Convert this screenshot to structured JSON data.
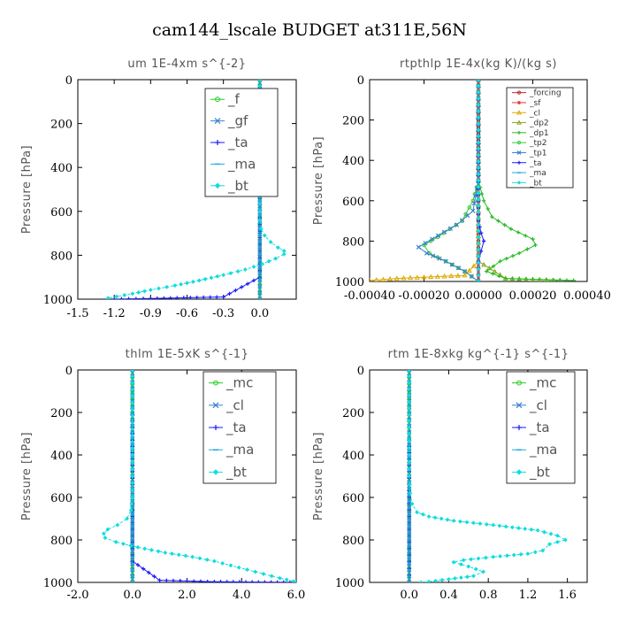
{
  "suptitle": "cam144_lscale  BUDGET at311E,56N",
  "chart_data": [
    {
      "type": "line",
      "title": "um  1E-4xm s^{-2}",
      "ylabel": "Pressure [hPa]",
      "xlim": [
        -1.5,
        0.3
      ],
      "ylim": [
        1000,
        0
      ],
      "xticks": [
        "-1.5",
        "-1.2",
        "-0.9",
        "-0.6",
        "-0.3",
        "0.0"
      ],
      "xtick_values": [
        -1.5,
        -1.2,
        -0.9,
        -0.6,
        -0.3,
        0.0
      ],
      "yticks": [
        "0",
        "200",
        "400",
        "600",
        "800",
        "1000"
      ],
      "ytick_values": [
        0,
        200,
        400,
        600,
        800,
        1000
      ],
      "series": [
        {
          "name": "_f",
          "color": "#22cc22",
          "marker": "circle",
          "values": [
            [
              0,
              0
            ],
            [
              0,
              100
            ],
            [
              0,
              200
            ],
            [
              0,
              300
            ],
            [
              0,
              400
            ],
            [
              0,
              500
            ],
            [
              0,
              600
            ],
            [
              0,
              700
            ],
            [
              0,
              800
            ],
            [
              0,
              900
            ],
            [
              0,
              1000
            ]
          ]
        },
        {
          "name": "_gf",
          "color": "#3a7fd0",
          "marker": "x",
          "values": [
            [
              0,
              0
            ],
            [
              0,
              500
            ],
            [
              0,
              1000
            ]
          ]
        },
        {
          "name": "_ta",
          "color": "#1a1aff",
          "marker": "plus",
          "values": [
            [
              0,
              0
            ],
            [
              0,
              600
            ],
            [
              0,
              900
            ],
            [
              -0.3,
              990
            ],
            [
              -0.9,
              997
            ],
            [
              -1.2,
              1000
            ]
          ]
        },
        {
          "name": "_ma",
          "color": "#22aadd",
          "marker": "dash",
          "values": [
            [
              0,
              0
            ],
            [
              0,
              500
            ],
            [
              0,
              1000
            ]
          ]
        },
        {
          "name": "_bt",
          "color": "#11dddd",
          "marker": "diamond",
          "values": [
            [
              0,
              0
            ],
            [
              0,
              300
            ],
            [
              0,
              500
            ],
            [
              0,
              600
            ],
            [
              0,
              640
            ],
            [
              0.01,
              680
            ],
            [
              0.04,
              710
            ],
            [
              0.09,
              740
            ],
            [
              0.15,
              765
            ],
            [
              0.2,
              780
            ],
            [
              0.2,
              795
            ],
            [
              0.13,
              815
            ],
            [
              0.02,
              840
            ],
            [
              -0.12,
              865
            ],
            [
              -0.3,
              890
            ],
            [
              -0.5,
              915
            ],
            [
              -0.7,
              938
            ],
            [
              -0.9,
              958
            ],
            [
              -1.05,
              975
            ],
            [
              -1.18,
              988
            ],
            [
              -1.25,
              995
            ],
            [
              -1.25,
              1000
            ]
          ]
        }
      ],
      "legend": {
        "position": "top-right",
        "entries": [
          "_f",
          "_gf",
          "_ta",
          "_ma",
          "_bt"
        ]
      }
    },
    {
      "type": "line",
      "title": "rtpthlp  1E-4x(kg K)/(kg s)",
      "ylabel": "Pressure [hPa]",
      "xlim": [
        -0.0004,
        0.0004
      ],
      "ylim": [
        1000,
        0
      ],
      "xticks": [
        "-0.00040",
        "-0.00020",
        "0.00000",
        "0.00020",
        "0.00040"
      ],
      "xtick_values": [
        -0.0004,
        -0.0002,
        0.0,
        0.0002,
        0.0004
      ],
      "yticks": [
        "0",
        "200",
        "400",
        "600",
        "800",
        "1000"
      ],
      "ytick_values": [
        0,
        200,
        400,
        600,
        800,
        1000
      ],
      "series": [
        {
          "name": "_forcing",
          "color": "#cc2222",
          "marker": "circle",
          "values": [
            [
              0,
              0
            ],
            [
              0,
              200
            ],
            [
              0,
              400
            ],
            [
              0,
              600
            ],
            [
              0,
              800
            ],
            [
              0,
              1000
            ]
          ]
        },
        {
          "name": "_sf",
          "color": "#ee3333",
          "marker": "star",
          "values": [
            [
              0,
              0
            ],
            [
              0,
              500
            ],
            [
              0,
              1000
            ]
          ]
        },
        {
          "name": "_cl",
          "color": "#ddaa00",
          "marker": "triangle",
          "values": [
            [
              0,
              0
            ],
            [
              0,
              900
            ],
            [
              -5e-05,
              970
            ],
            [
              -0.0003,
              985
            ],
            [
              -0.0004,
              995
            ]
          ]
        },
        {
          "name": "_dp2",
          "color": "#88aa22",
          "marker": "triangle",
          "values": [
            [
              0,
              0
            ],
            [
              0,
              900
            ],
            [
              0.0001,
              985
            ],
            [
              0.0003,
              995
            ]
          ]
        },
        {
          "name": "_dp1",
          "color": "#22bb22",
          "marker": "plus",
          "values": [
            [
              0,
              0
            ],
            [
              0,
              500
            ],
            [
              2e-05,
              600
            ],
            [
              5e-05,
              680
            ],
            [
              0.00012,
              740
            ],
            [
              0.0002,
              790
            ],
            [
              0.00021,
              820
            ],
            [
              0.00015,
              860
            ],
            [
              8e-05,
              900
            ],
            [
              3e-05,
              950
            ],
            [
              0.0001,
              985
            ],
            [
              0.00035,
              995
            ]
          ]
        },
        {
          "name": "_tp2",
          "color": "#33cc33",
          "marker": "circle",
          "values": [
            [
              0,
              0
            ],
            [
              0,
              500
            ],
            [
              -2e-05,
              600
            ],
            [
              -6e-05,
              700
            ],
            [
              -0.00015,
              780
            ],
            [
              -0.0002,
              820
            ],
            [
              -0.00018,
              860
            ],
            [
              -0.00012,
              900
            ],
            [
              -5e-05,
              950
            ],
            [
              0,
              1000
            ]
          ]
        },
        {
          "name": "_tp1",
          "color": "#3a7fd0",
          "marker": "x",
          "values": [
            [
              0,
              0
            ],
            [
              0,
              500
            ],
            [
              -2e-05,
              650
            ],
            [
              -8e-05,
              720
            ],
            [
              -0.00017,
              790
            ],
            [
              -0.00022,
              830
            ],
            [
              -0.00019,
              860
            ],
            [
              -0.00012,
              900
            ],
            [
              -5e-05,
              950
            ],
            [
              0,
              1000
            ]
          ]
        },
        {
          "name": "_ta",
          "color": "#1a1aff",
          "marker": "plus",
          "values": [
            [
              0,
              0
            ],
            [
              0,
              700
            ],
            [
              1e-05,
              760
            ],
            [
              2e-05,
              800
            ],
            [
              1e-05,
              850
            ],
            [
              0,
              900
            ],
            [
              0,
              1000
            ]
          ]
        },
        {
          "name": "_ma",
          "color": "#22aadd",
          "marker": "dash",
          "values": [
            [
              0,
              0
            ],
            [
              0,
              1000
            ]
          ]
        },
        {
          "name": "_bt",
          "color": "#11dddd",
          "marker": "diamond",
          "values": [
            [
              0,
              0
            ],
            [
              0,
              1000
            ]
          ]
        }
      ],
      "legend": {
        "position": "top-right",
        "entries": [
          "_forcing",
          "_sf",
          "_cl",
          "_dp2",
          "_dp1",
          "_tp2",
          "_tp1",
          "_ta",
          "_ma",
          "_bt"
        ]
      }
    },
    {
      "type": "line",
      "title": "thlm  1E-5xK s^{-1}",
      "ylabel": "Pressure [hPa]",
      "xlim": [
        -2.0,
        6.0
      ],
      "ylim": [
        1000,
        0
      ],
      "xticks": [
        "-2.0",
        "0.0",
        "2.0",
        "4.0",
        "6.0"
      ],
      "xtick_values": [
        -2.0,
        0.0,
        2.0,
        4.0,
        6.0
      ],
      "yticks": [
        "0",
        "200",
        "400",
        "600",
        "800",
        "1000"
      ],
      "ytick_values": [
        0,
        200,
        400,
        600,
        800,
        1000
      ],
      "series": [
        {
          "name": "_mc",
          "color": "#22cc22",
          "marker": "circle",
          "values": [
            [
              0,
              0
            ],
            [
              0,
              100
            ],
            [
              0,
              200
            ],
            [
              0,
              300
            ],
            [
              0,
              400
            ],
            [
              0,
              500
            ],
            [
              0,
              600
            ],
            [
              0,
              700
            ],
            [
              0,
              800
            ],
            [
              0,
              900
            ],
            [
              0,
              1000
            ]
          ]
        },
        {
          "name": "_cl",
          "color": "#3a7fd0",
          "marker": "x",
          "values": [
            [
              0,
              0
            ],
            [
              0,
              500
            ],
            [
              0,
              1000
            ]
          ]
        },
        {
          "name": "_ta",
          "color": "#1a1aff",
          "marker": "plus",
          "values": [
            [
              0,
              0
            ],
            [
              0,
              900
            ],
            [
              1.0,
              990
            ],
            [
              3.0,
              997
            ],
            [
              6.0,
              1000
            ]
          ]
        },
        {
          "name": "_ma",
          "color": "#22aadd",
          "marker": "dash",
          "values": [
            [
              0,
              0
            ],
            [
              0,
              1000
            ]
          ]
        },
        {
          "name": "_bt",
          "color": "#11dddd",
          "marker": "diamond",
          "values": [
            [
              0,
              0
            ],
            [
              0,
              400
            ],
            [
              0,
              600
            ],
            [
              -0.05,
              660
            ],
            [
              -0.2,
              700
            ],
            [
              -0.55,
              730
            ],
            [
              -0.9,
              750
            ],
            [
              -1.05,
              770
            ],
            [
              -1.0,
              790
            ],
            [
              -0.6,
              810
            ],
            [
              0.2,
              835
            ],
            [
              1.2,
              860
            ],
            [
              2.2,
              880
            ],
            [
              3.0,
              900
            ],
            [
              3.6,
              920
            ],
            [
              4.2,
              940
            ],
            [
              4.8,
              960
            ],
            [
              5.4,
              980
            ],
            [
              5.9,
              995
            ],
            [
              6.0,
              1000
            ]
          ]
        }
      ],
      "legend": {
        "position": "top-right",
        "entries": [
          "_mc",
          "_cl",
          "_ta",
          "_ma",
          "_bt"
        ]
      }
    },
    {
      "type": "line",
      "title": "rtm  1E-8xkg kg^{-1} s^{-1}",
      "ylabel": "Pressure [hPa]",
      "xlim": [
        -0.4,
        1.8
      ],
      "ylim": [
        1000,
        0
      ],
      "xticks": [
        "0.0",
        "0.4",
        "0.8",
        "1.2",
        "1.6"
      ],
      "xtick_values": [
        0.0,
        0.4,
        0.8,
        1.2,
        1.6
      ],
      "yticks": [
        "0",
        "200",
        "400",
        "600",
        "800",
        "1000"
      ],
      "ytick_values": [
        0,
        200,
        400,
        600,
        800,
        1000
      ],
      "series": [
        {
          "name": "_mc",
          "color": "#22cc22",
          "marker": "circle",
          "values": [
            [
              0,
              0
            ],
            [
              0,
              100
            ],
            [
              0,
              200
            ],
            [
              0,
              300
            ],
            [
              0,
              400
            ],
            [
              0,
              500
            ],
            [
              0,
              600
            ],
            [
              0,
              700
            ],
            [
              0,
              800
            ],
            [
              0,
              900
            ],
            [
              0,
              1000
            ]
          ]
        },
        {
          "name": "_cl",
          "color": "#3a7fd0",
          "marker": "x",
          "values": [
            [
              0,
              0
            ],
            [
              0,
              500
            ],
            [
              0,
              1000
            ]
          ]
        },
        {
          "name": "_ta",
          "color": "#1a1aff",
          "marker": "plus",
          "values": [
            [
              0,
              0
            ],
            [
              0,
              900
            ],
            [
              0,
              1000
            ]
          ]
        },
        {
          "name": "_ma",
          "color": "#22aadd",
          "marker": "dash",
          "values": [
            [
              0,
              0
            ],
            [
              0,
              1000
            ]
          ]
        },
        {
          "name": "_bt",
          "color": "#11dddd",
          "marker": "diamond",
          "values": [
            [
              0,
              0
            ],
            [
              0,
              300
            ],
            [
              0,
              500
            ],
            [
              0.01,
              580
            ],
            [
              0.03,
              630
            ],
            [
              0.08,
              670
            ],
            [
              0.2,
              690
            ],
            [
              0.45,
              710
            ],
            [
              0.85,
              730
            ],
            [
              1.3,
              755
            ],
            [
              1.5,
              780
            ],
            [
              1.58,
              800
            ],
            [
              1.42,
              820
            ],
            [
              1.35,
              850
            ],
            [
              1.2,
              865
            ],
            [
              0.85,
              880
            ],
            [
              0.55,
              895
            ],
            [
              0.45,
              905
            ],
            [
              0.6,
              925
            ],
            [
              0.75,
              950
            ],
            [
              0.65,
              970
            ],
            [
              0.4,
              985
            ],
            [
              0.2,
              997
            ],
            [
              0.12,
              1000
            ]
          ]
        }
      ],
      "legend": {
        "position": "top-right",
        "entries": [
          "_mc",
          "_cl",
          "_ta",
          "_ma",
          "_bt"
        ]
      }
    }
  ]
}
